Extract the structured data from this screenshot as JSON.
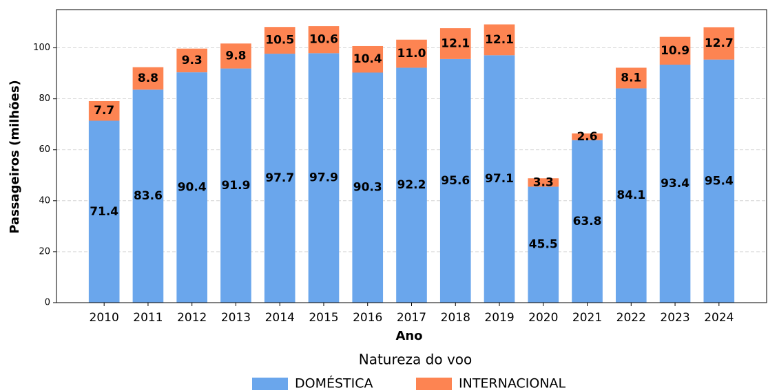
{
  "chart_data": {
    "type": "stacked_bar",
    "xlabel": "Ano",
    "ylabel": "Passageiros (milhões)",
    "categories": [
      "2010",
      "2011",
      "2012",
      "2013",
      "2014",
      "2015",
      "2016",
      "2017",
      "2018",
      "2019",
      "2020",
      "2021",
      "2022",
      "2023",
      "2024"
    ],
    "series": [
      {
        "name": "DOMÉSTICA",
        "color": "#6aa6ec",
        "values": [
          71.4,
          83.6,
          90.4,
          91.9,
          97.7,
          97.9,
          90.3,
          92.2,
          95.6,
          97.1,
          45.5,
          63.8,
          84.1,
          93.4,
          95.4
        ],
        "value_labels": [
          "71.4",
          "83.6",
          "90.4",
          "91.9",
          "97.7",
          "97.9",
          "90.3",
          "92.2",
          "95.6",
          "97.1",
          "45.5",
          "63.8",
          "84.1",
          "93.4",
          "95.4"
        ]
      },
      {
        "name": "INTERNACIONAL",
        "color": "#fd8452",
        "values": [
          7.7,
          8.8,
          9.3,
          9.8,
          10.5,
          10.6,
          10.4,
          11.0,
          12.1,
          12.1,
          3.3,
          2.6,
          8.1,
          10.9,
          12.7
        ],
        "value_labels": [
          "7.7",
          "8.8",
          "9.3",
          "9.8",
          "10.5",
          "10.6",
          "10.4",
          "11.0",
          "12.1",
          "12.1",
          "3.3",
          "2.6",
          "8.1",
          "10.9",
          "12.7"
        ]
      }
    ],
    "ylim": [
      0,
      115
    ],
    "yticks": [
      0,
      20,
      40,
      60,
      80,
      100
    ],
    "grid": true,
    "legend_title": "Natureza do voo",
    "legend": "bottom"
  }
}
